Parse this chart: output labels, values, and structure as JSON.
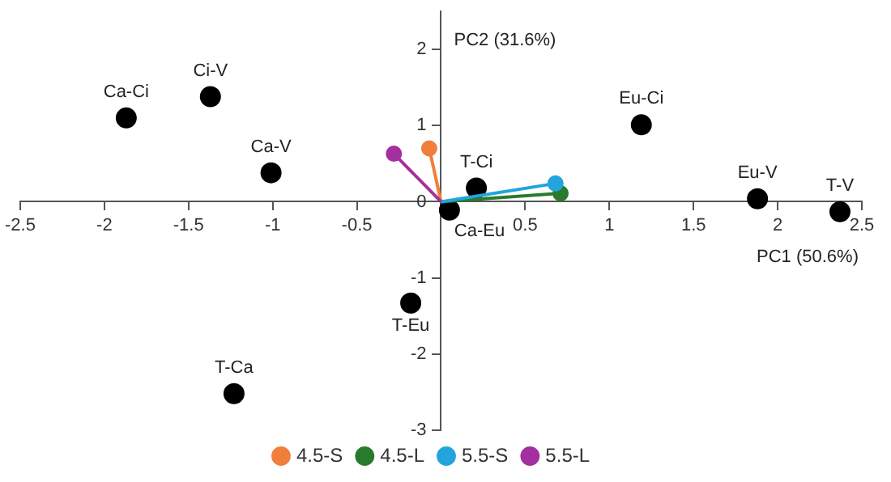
{
  "chart_data": {
    "type": "scatter",
    "xlabel": "PC1 (50.6%)",
    "ylabel": "PC2 (31.6%)",
    "xlim": [
      -2.5,
      2.5
    ],
    "xticks": [
      -2.5,
      -2,
      -1.5,
      -1,
      -0.5,
      {
        "value": 0,
        "label": null
      },
      0.5,
      1,
      1.5,
      2,
      2.5
    ],
    "ylim": [
      -3,
      2.5
    ],
    "yticks": [
      -3,
      -2,
      -1,
      0,
      1,
      2
    ],
    "grid": false,
    "legend": "bottom",
    "marker": "circle",
    "series": [
      {
        "type": "scatter",
        "color": "#000000",
        "x": [
          -1.87,
          -1.37,
          -1.01,
          1.19,
          0.21,
          1.88,
          2.37,
          0.05,
          -0.18,
          -1.23
        ],
        "values": [
          1.1,
          1.38,
          0.38,
          1.01,
          0.18,
          0.04,
          -0.13,
          -0.11,
          -1.33,
          -2.52
        ]
      },
      {
        "type": "line",
        "name": "4.5-S",
        "color": "#f07f3c",
        "x": [
          0,
          -0.07
        ],
        "values": [
          0,
          0.7
        ]
      },
      {
        "type": "line",
        "name": "4.5-L",
        "color": "#2a7a2e",
        "x": [
          0,
          0.71
        ],
        "values": [
          0,
          0.11
        ]
      },
      {
        "type": "line",
        "name": "5.5-S",
        "color": "#22a4dc",
        "x": [
          0,
          0.68
        ],
        "values": [
          0,
          0.24
        ]
      },
      {
        "type": "line",
        "name": "5.5-L",
        "color": "#a3309e",
        "x": [
          0,
          -0.28
        ],
        "values": [
          0,
          0.63
        ]
      }
    ],
    "annotations": [
      {
        "text": "Ca-Ci",
        "x": -1.87,
        "y": 1.1
      },
      {
        "text": "Ci-V",
        "x": -1.37,
        "y": 1.38
      },
      {
        "text": "Ca-V",
        "x": -1.01,
        "y": 0.38
      },
      {
        "text": "Eu-Ci",
        "x": 1.19,
        "y": 1.01
      },
      {
        "text": "T-Ci",
        "x": 0.21,
        "y": 0.18
      },
      {
        "text": "Eu-V",
        "x": 1.88,
        "y": 0.04
      },
      {
        "text": "T-V",
        "x": 2.37,
        "y": -0.13
      },
      {
        "text": "Ca-Eu",
        "x": 0.05,
        "y": -0.11
      },
      {
        "text": "T-Eu",
        "x": -0.18,
        "y": -1.33
      },
      {
        "text": "T-Ca",
        "x": -1.23,
        "y": -2.52
      }
    ]
  }
}
